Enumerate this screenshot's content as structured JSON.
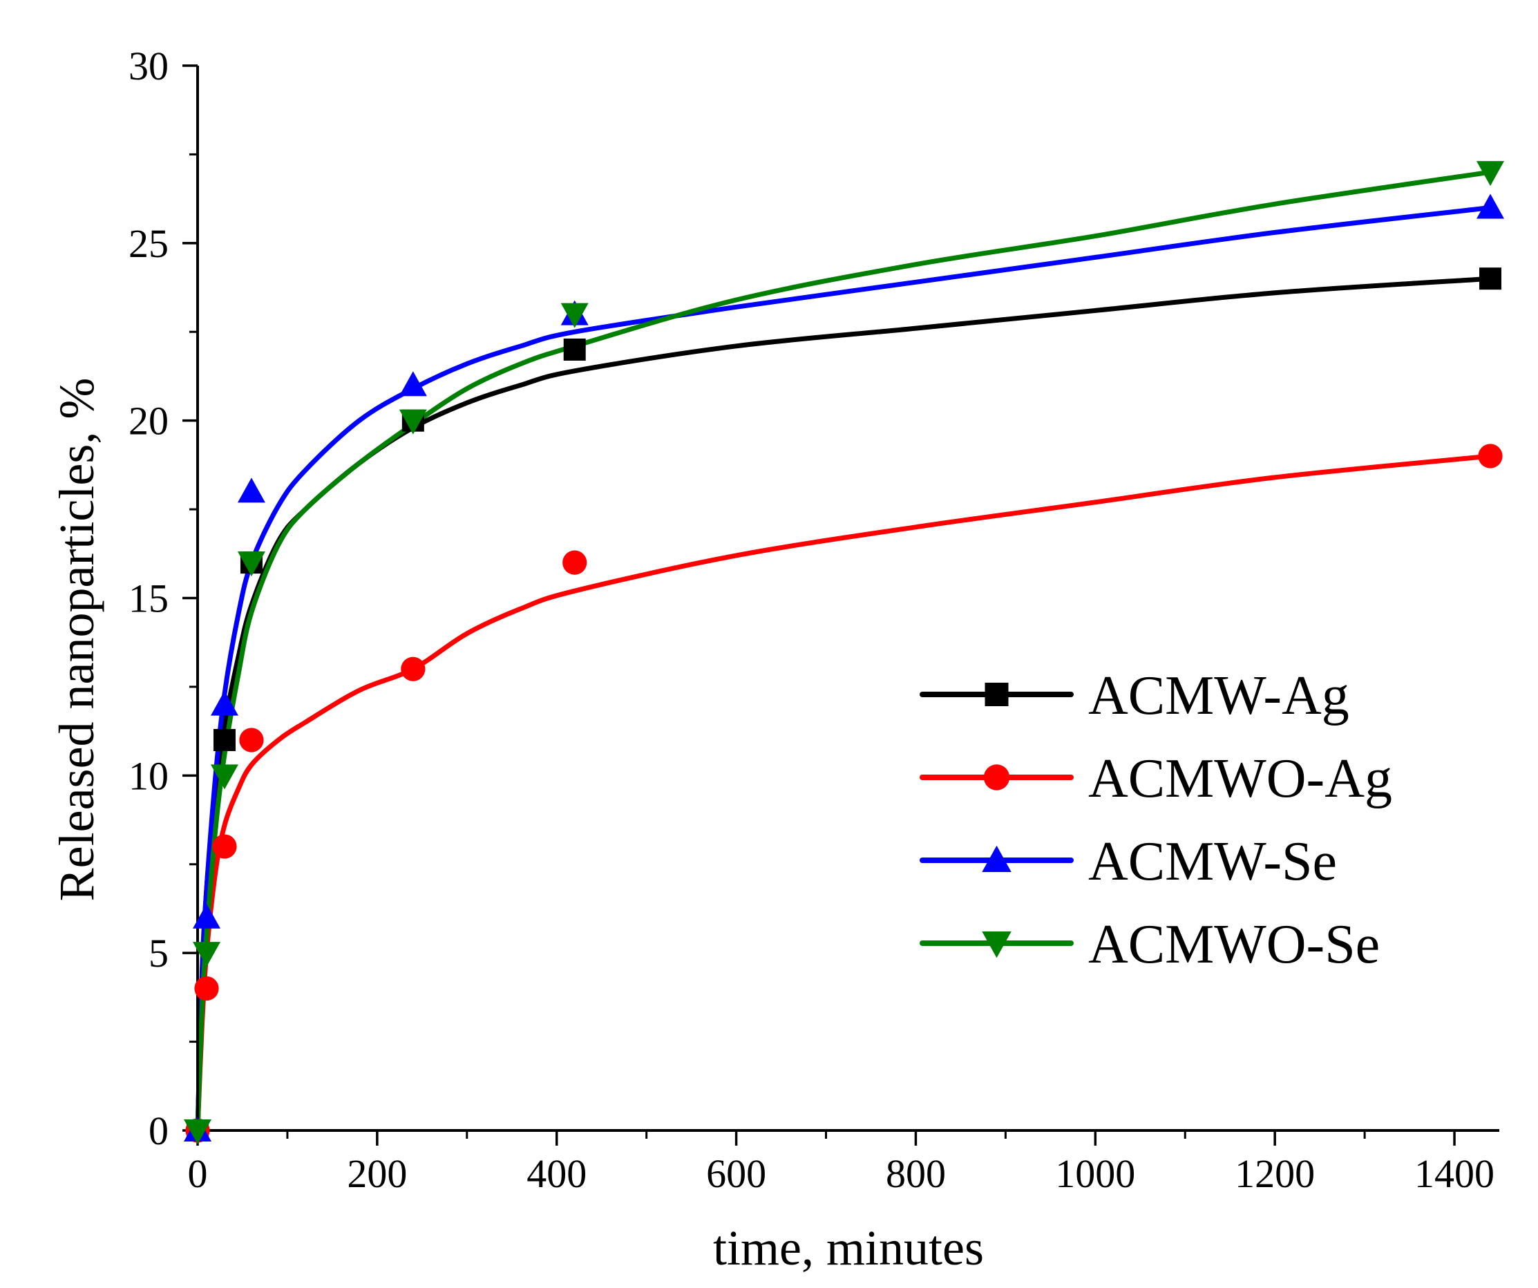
{
  "chart_data": {
    "type": "scatter",
    "title": "",
    "xlabel": "time, minutes",
    "ylabel": "Released nanoparticles, %",
    "xlim": [
      0,
      1450
    ],
    "ylim": [
      0,
      30
    ],
    "xticks": [
      0,
      200,
      400,
      600,
      800,
      1000,
      1200,
      1400
    ],
    "yticks": [
      0,
      5,
      10,
      15,
      20,
      25,
      30
    ],
    "x_minor_step": 100,
    "y_minor_step": 2.5,
    "grid": false,
    "legend_position": "lower-right",
    "series": [
      {
        "name": "ACMW-Ag",
        "color": "#000000",
        "marker": "square",
        "x": [
          0,
          30,
          60,
          240,
          420,
          1440
        ],
        "y": [
          0,
          11,
          16,
          20,
          22,
          24
        ],
        "fit": [
          [
            0,
            0
          ],
          [
            5,
            4.2
          ],
          [
            10,
            6.8
          ],
          [
            20,
            9.6
          ],
          [
            30,
            11.4
          ],
          [
            45,
            13.3
          ],
          [
            60,
            14.8
          ],
          [
            90,
            16.6
          ],
          [
            120,
            17.5
          ],
          [
            180,
            18.8
          ],
          [
            240,
            19.8
          ],
          [
            300,
            20.5
          ],
          [
            360,
            21.0
          ],
          [
            420,
            21.4
          ],
          [
            600,
            22.1
          ],
          [
            800,
            22.6
          ],
          [
            1000,
            23.1
          ],
          [
            1200,
            23.6
          ],
          [
            1440,
            24.0
          ]
        ]
      },
      {
        "name": "ACMWO-Ag",
        "color": "#ff0000",
        "marker": "circle",
        "x": [
          0,
          10,
          30,
          60,
          240,
          420,
          1440
        ],
        "y": [
          0,
          4,
          8,
          11,
          13,
          16,
          19
        ],
        "fit": [
          [
            0,
            0
          ],
          [
            5,
            3.0
          ],
          [
            10,
            5.0
          ],
          [
            20,
            7.3
          ],
          [
            30,
            8.6
          ],
          [
            45,
            9.6
          ],
          [
            60,
            10.3
          ],
          [
            90,
            11.0
          ],
          [
            120,
            11.5
          ],
          [
            180,
            12.4
          ],
          [
            240,
            13.0
          ],
          [
            300,
            14.0
          ],
          [
            360,
            14.7
          ],
          [
            420,
            15.2
          ],
          [
            600,
            16.2
          ],
          [
            800,
            17.0
          ],
          [
            1000,
            17.7
          ],
          [
            1200,
            18.4
          ],
          [
            1440,
            19.0
          ]
        ]
      },
      {
        "name": "ACMW-Se",
        "color": "#0000ff",
        "marker": "triangle-up",
        "x": [
          0,
          10,
          30,
          60,
          240,
          420,
          1440
        ],
        "y": [
          0,
          6,
          12,
          18,
          21,
          23,
          26
        ],
        "fit": [
          [
            0,
            0
          ],
          [
            5,
            4.5
          ],
          [
            10,
            6.8
          ],
          [
            20,
            10.0
          ],
          [
            30,
            12.3
          ],
          [
            45,
            14.5
          ],
          [
            60,
            16.0
          ],
          [
            90,
            17.6
          ],
          [
            120,
            18.6
          ],
          [
            180,
            20.0
          ],
          [
            240,
            20.9
          ],
          [
            300,
            21.6
          ],
          [
            360,
            22.1
          ],
          [
            420,
            22.5
          ],
          [
            600,
            23.2
          ],
          [
            800,
            23.9
          ],
          [
            1000,
            24.6
          ],
          [
            1200,
            25.3
          ],
          [
            1440,
            26.0
          ]
        ]
      },
      {
        "name": "ACMWO-Se",
        "color": "#008000",
        "marker": "triangle-down",
        "x": [
          0,
          10,
          30,
          60,
          240,
          420,
          1440
        ],
        "y": [
          0,
          5,
          10,
          16,
          20,
          23,
          27
        ],
        "fit": [
          [
            0,
            0
          ],
          [
            5,
            3.5
          ],
          [
            10,
            5.5
          ],
          [
            20,
            8.5
          ],
          [
            30,
            10.6
          ],
          [
            45,
            12.8
          ],
          [
            60,
            14.6
          ],
          [
            90,
            16.5
          ],
          [
            120,
            17.5
          ],
          [
            180,
            18.8
          ],
          [
            240,
            19.9
          ],
          [
            300,
            20.9
          ],
          [
            360,
            21.6
          ],
          [
            420,
            22.1
          ],
          [
            600,
            23.4
          ],
          [
            800,
            24.4
          ],
          [
            1000,
            25.2
          ],
          [
            1200,
            26.1
          ],
          [
            1440,
            27.0
          ]
        ]
      }
    ]
  }
}
